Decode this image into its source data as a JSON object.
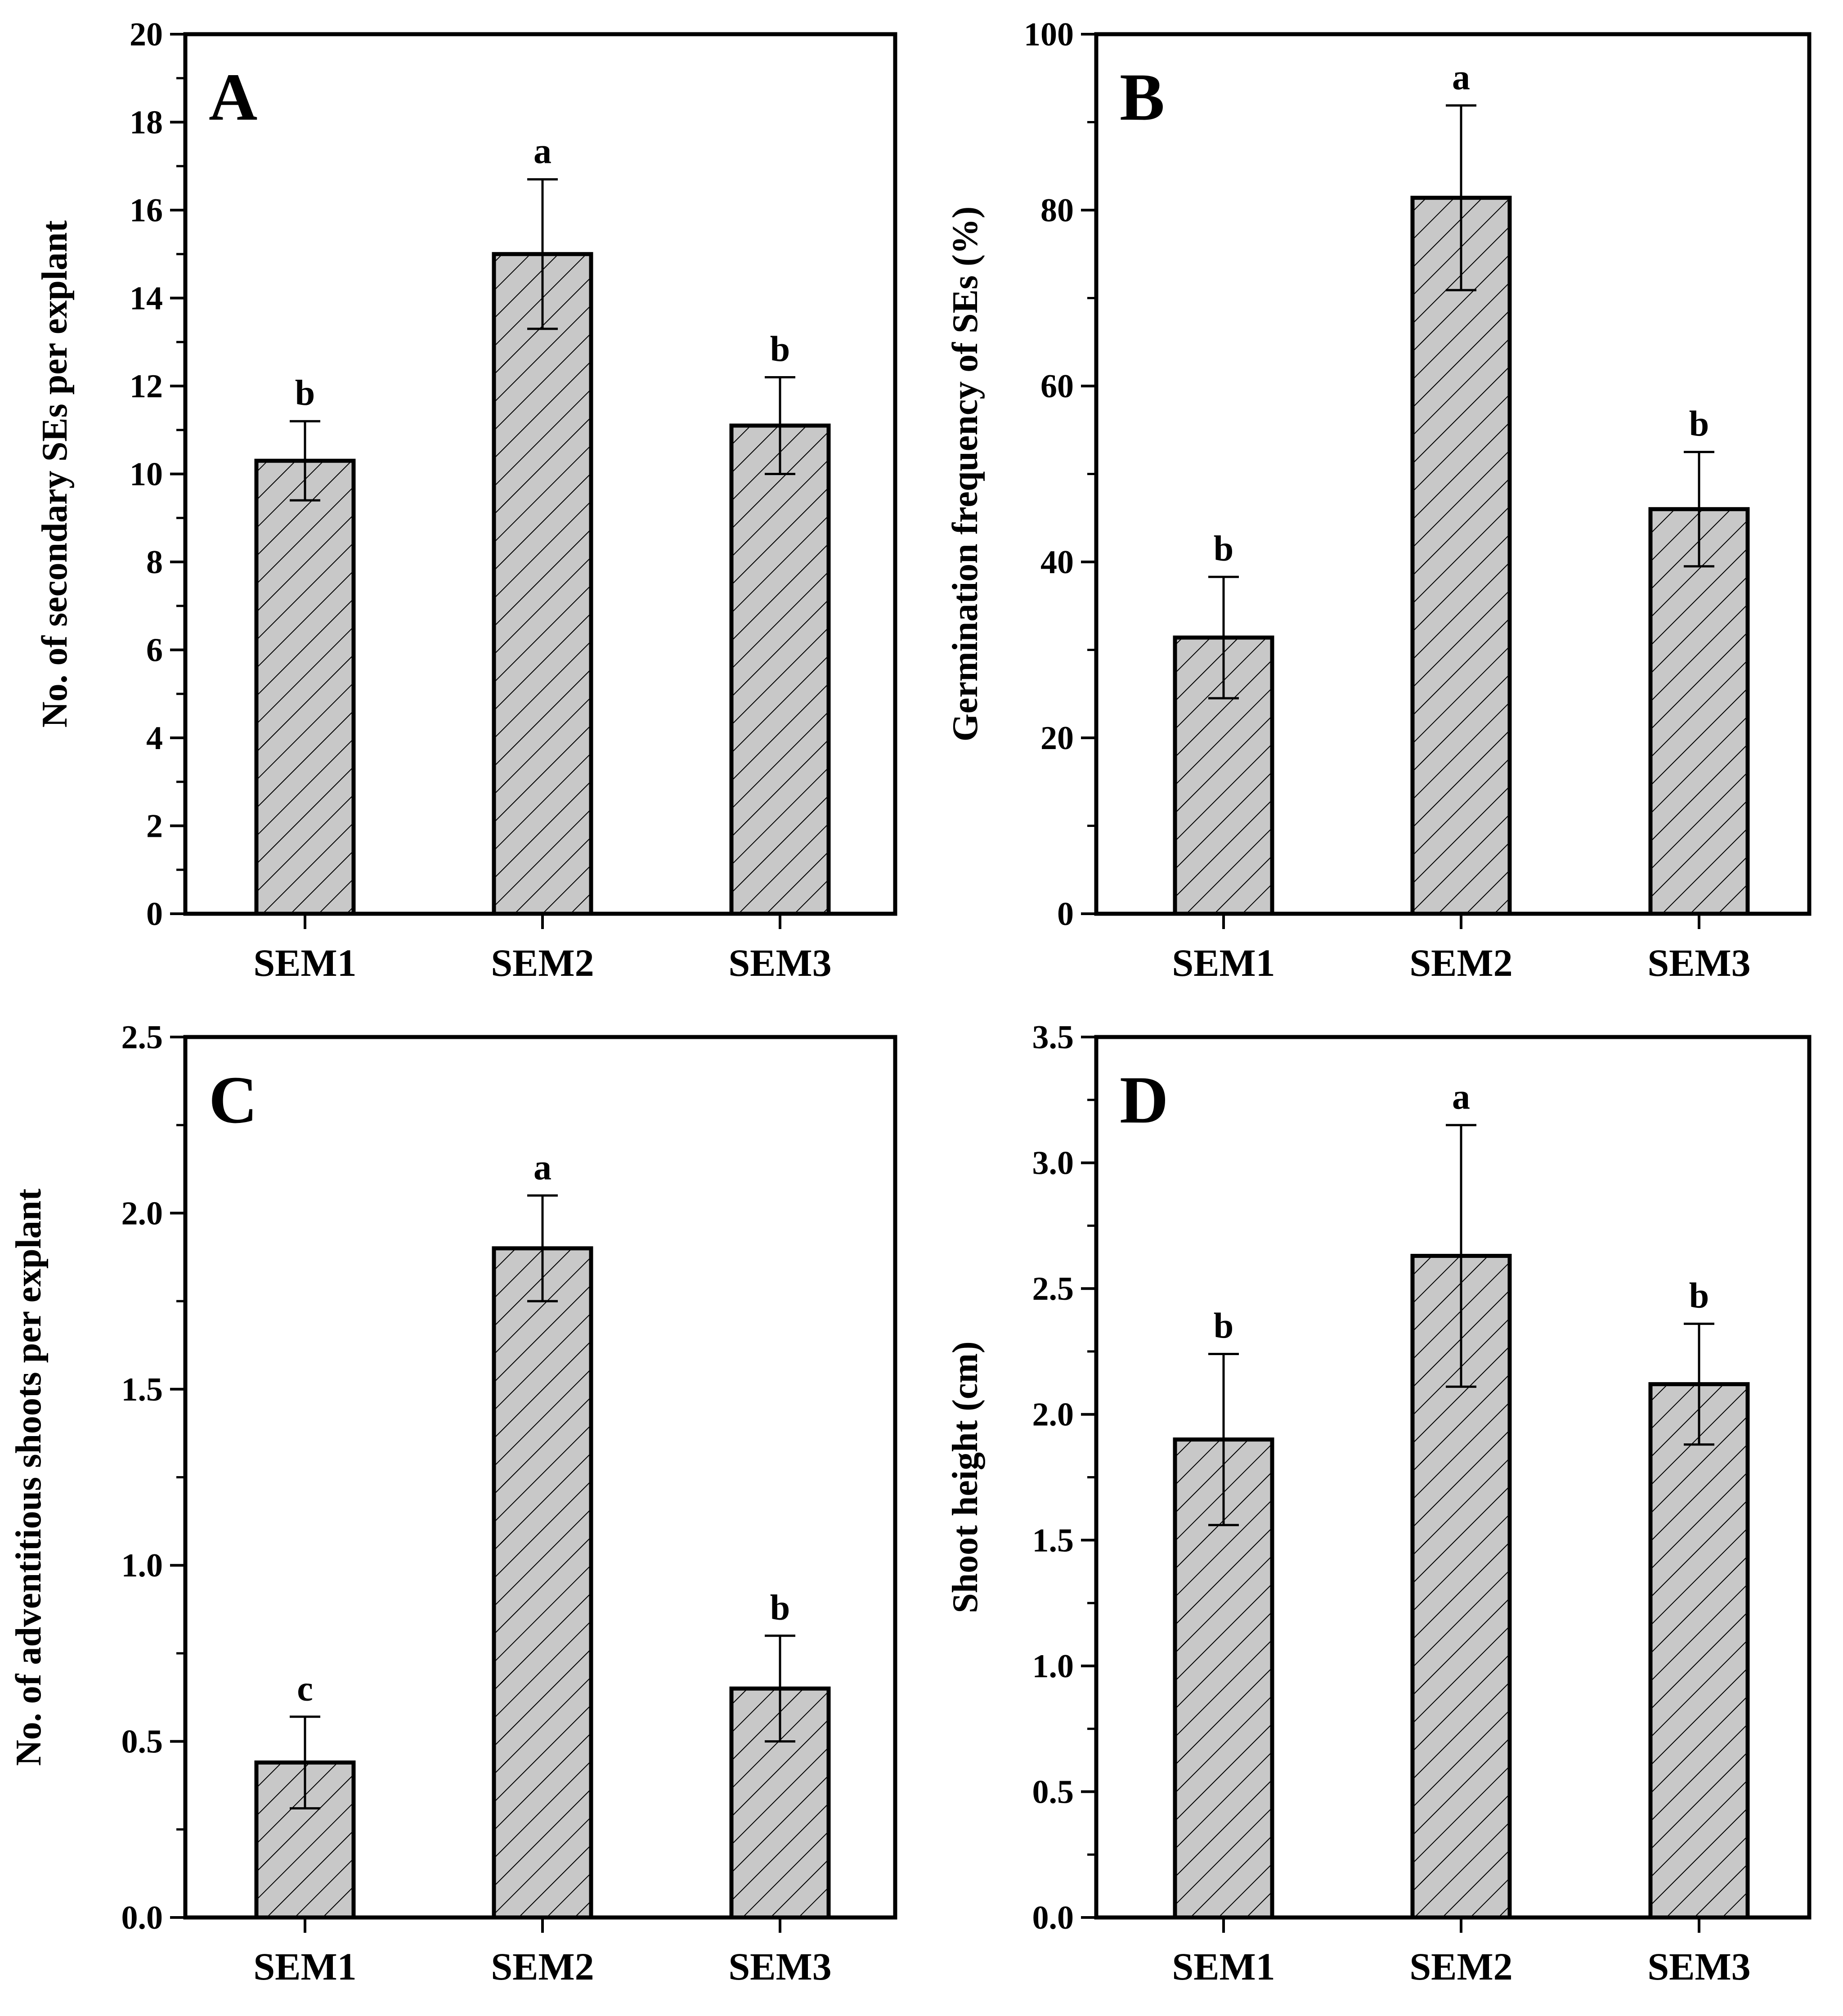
{
  "figure": {
    "hatch_fill": "#c8c8c8",
    "hatch_line": "#000000"
  },
  "chart_data": [
    {
      "type": "bar",
      "panel": "A",
      "categories": [
        "SEM1",
        "SEM2",
        "SEM3"
      ],
      "values": [
        10.3,
        15.0,
        11.1
      ],
      "errors": [
        0.9,
        1.7,
        1.1
      ],
      "significance": [
        "b",
        "a",
        "b"
      ],
      "xlabel": "",
      "ylabel": "No. of secondary SEs per explant",
      "ylim": [
        0,
        20
      ],
      "ytick_labels": [
        "0",
        "2",
        "4",
        "6",
        "8",
        "10",
        "12",
        "14",
        "16",
        "18",
        "20"
      ]
    },
    {
      "type": "bar",
      "panel": "B",
      "categories": [
        "SEM1",
        "SEM2",
        "SEM3"
      ],
      "values": [
        31.4,
        81.4,
        46.0
      ],
      "errors": [
        6.9,
        10.5,
        6.5
      ],
      "significance": [
        "b",
        "a",
        "b"
      ],
      "xlabel": "",
      "ylabel": "Germination frequency of SEs (%)",
      "ylim": [
        0,
        100
      ],
      "ytick_labels": [
        "0",
        "20",
        "40",
        "60",
        "80",
        "100"
      ]
    },
    {
      "type": "bar",
      "panel": "C",
      "categories": [
        "SEM1",
        "SEM2",
        "SEM3"
      ],
      "values": [
        0.44,
        1.9,
        0.65
      ],
      "errors": [
        0.13,
        0.15,
        0.15
      ],
      "significance": [
        "c",
        "a",
        "b"
      ],
      "xlabel": "",
      "ylabel": "No. of adventitious shoots per explant",
      "ylim": [
        0,
        2.5
      ],
      "ytick_labels": [
        "0.0",
        "0.5",
        "1.0",
        "1.5",
        "2.0",
        "2.5"
      ]
    },
    {
      "type": "bar",
      "panel": "D",
      "categories": [
        "SEM1",
        "SEM2",
        "SEM3"
      ],
      "values": [
        1.9,
        2.63,
        2.12
      ],
      "errors": [
        0.34,
        0.52,
        0.24
      ],
      "significance": [
        "b",
        "a",
        "b"
      ],
      "xlabel": "",
      "ylabel": "Shoot height (cm)",
      "ylim": [
        0,
        3.5
      ],
      "ytick_labels": [
        "0.0",
        "0.5",
        "1.0",
        "1.5",
        "2.0",
        "2.5",
        "3.0",
        "3.5"
      ]
    }
  ]
}
